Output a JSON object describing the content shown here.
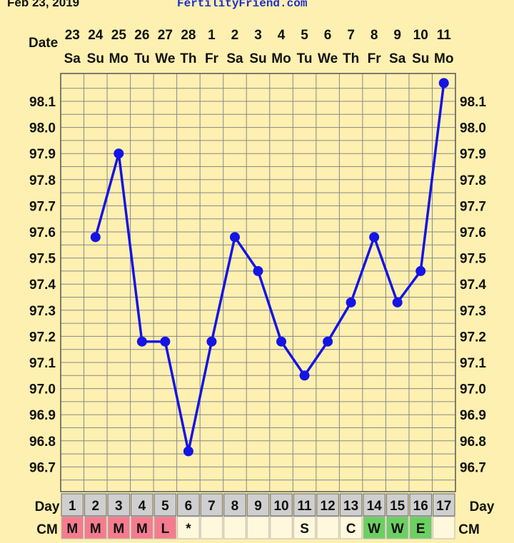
{
  "header": {
    "start_date": "Feb 23, 2019",
    "site": "FertilityFriend.com",
    "date_label": "Date"
  },
  "colors": {
    "background": "#fef0b0",
    "line": "#1414e6",
    "grid": "#888888",
    "cm_red": "#f47c8e",
    "cm_green": "#6ccf62",
    "cell_light": "#fff8dc",
    "day_cell": "#cfcfcf"
  },
  "chart_data": {
    "type": "line",
    "title": "",
    "xlabel": "Date",
    "ylabel": "",
    "dates": [
      "23",
      "24",
      "25",
      "26",
      "27",
      "28",
      "1",
      "2",
      "3",
      "4",
      "5",
      "6",
      "7",
      "8",
      "9",
      "10",
      "11"
    ],
    "weekdays": [
      "Sa",
      "Su",
      "Mo",
      "Tu",
      "We",
      "Th",
      "Fr",
      "Sa",
      "Su",
      "Mo",
      "Tu",
      "We",
      "Th",
      "Fr",
      "Sa",
      "Su",
      "Mo"
    ],
    "y_ticks": [
      "98.1",
      "98.0",
      "97.9",
      "97.8",
      "97.7",
      "97.6",
      "97.5",
      "97.4",
      "97.3",
      "97.2",
      "97.1",
      "97.0",
      "96.9",
      "96.8",
      "96.7"
    ],
    "ylim": [
      96.65,
      98.2
    ],
    "grid": true,
    "series": [
      {
        "values": [
          null,
          97.58,
          97.9,
          97.18,
          97.18,
          96.76,
          97.18,
          97.58,
          97.45,
          97.18,
          97.05,
          97.18,
          97.33,
          97.58,
          97.33,
          97.45,
          98.17
        ]
      }
    ],
    "day_row": {
      "label": "Day",
      "values": [
        "1",
        "2",
        "3",
        "4",
        "5",
        "6",
        "7",
        "8",
        "9",
        "10",
        "11",
        "12",
        "13",
        "14",
        "15",
        "16",
        "17"
      ]
    },
    "cm_row": {
      "label": "CM",
      "values": [
        "M",
        "M",
        "M",
        "M",
        "L",
        "*",
        "",
        "",
        "",
        "",
        "S",
        "",
        "C",
        "W",
        "W",
        "E",
        ""
      ],
      "colors": [
        "red",
        "red",
        "red",
        "red",
        "red",
        "light",
        "light",
        "light",
        "light",
        "light",
        "light",
        "light",
        "light",
        "green",
        "green",
        "green",
        "light"
      ]
    }
  }
}
